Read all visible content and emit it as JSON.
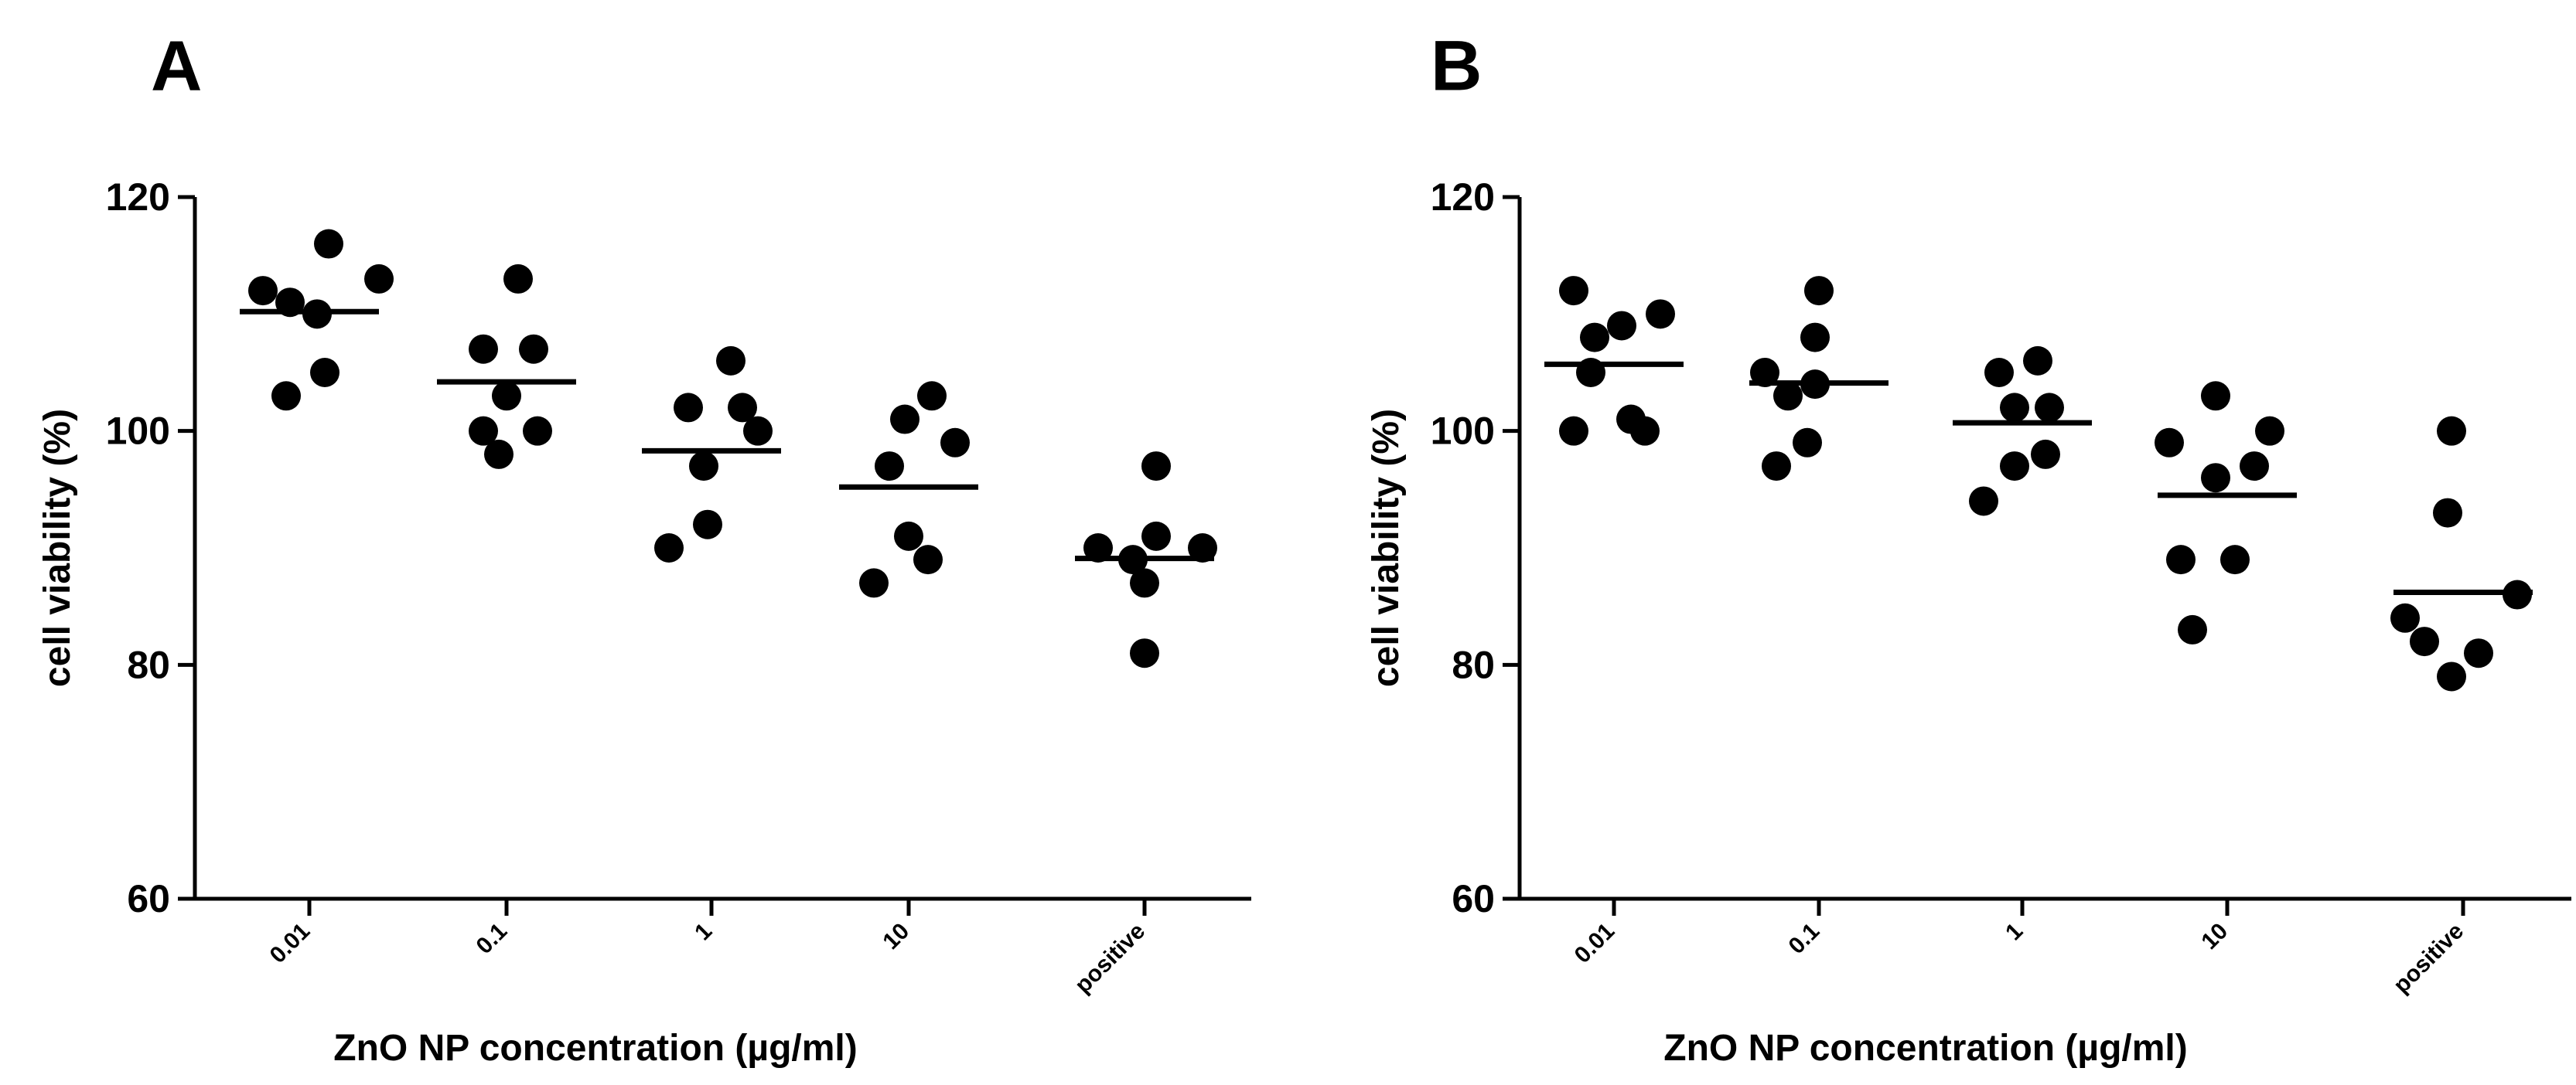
{
  "chart_data": [
    {
      "type": "scatter",
      "panel": "A",
      "ylabel": "cell viability (%)",
      "xlabel": "ZnO NP concentration (µg/ml)",
      "ylim": [
        60,
        120
      ],
      "yticks": [
        "60",
        "80",
        "100",
        "120"
      ],
      "categories": [
        "0.01",
        "0.1",
        "1",
        "10",
        "positive"
      ],
      "points": [
        [
          116,
          113,
          112,
          111,
          110,
          105,
          103
        ],
        [
          113,
          107,
          107,
          103,
          100,
          100,
          98
        ],
        [
          106,
          102,
          102,
          100,
          97,
          92,
          90
        ],
        [
          103,
          101,
          99,
          97,
          91,
          89,
          87
        ],
        [
          97,
          91,
          90,
          90,
          89,
          87,
          81
        ]
      ],
      "medians": [
        110.2,
        104.2,
        98.3,
        95.2,
        89.1
      ]
    },
    {
      "type": "scatter",
      "panel": "B",
      "ylabel": "cell viability (%)",
      "xlabel": "ZnO NP concentration (µg/ml)",
      "ylim": [
        60,
        120
      ],
      "yticks": [
        "60",
        "80",
        "100",
        "120"
      ],
      "categories": [
        "0.01",
        "0.1",
        "1",
        "10",
        "positive"
      ],
      "points": [
        [
          112,
          110,
          109,
          108,
          105,
          101,
          100,
          100
        ],
        [
          112,
          108,
          105,
          104,
          103,
          99,
          97
        ],
        [
          106,
          105,
          102,
          102,
          98,
          97,
          94
        ],
        [
          103,
          100,
          99,
          97,
          96,
          89,
          89,
          83
        ],
        [
          100,
          93,
          86,
          84,
          82,
          81,
          79
        ]
      ],
      "medians": [
        105.7,
        104.1,
        100.7,
        94.5,
        86.2
      ]
    }
  ]
}
